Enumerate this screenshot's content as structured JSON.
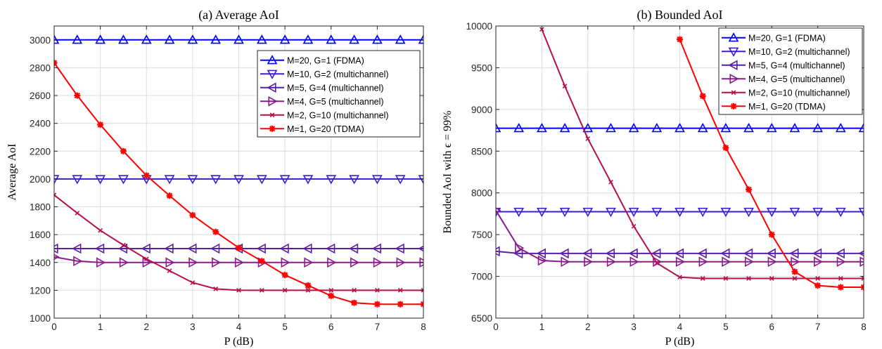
{
  "chart_data": [
    {
      "type": "line",
      "title": "(a) Average AoI",
      "xlabel": "P (dB)",
      "ylabel": "Average AoI",
      "xlim": [
        0,
        8
      ],
      "ylim": [
        1000,
        3100
      ],
      "xticks": [
        0,
        1,
        2,
        3,
        4,
        5,
        6,
        7,
        8
      ],
      "yticks": [
        1000,
        1200,
        1400,
        1600,
        1800,
        2000,
        2200,
        2400,
        2600,
        2800,
        3000
      ],
      "grid": true,
      "legend_position": "top-right",
      "x": [
        0,
        0.5,
        1,
        1.5,
        2,
        2.5,
        3,
        3.5,
        4,
        4.5,
        5,
        5.5,
        6,
        6.5,
        7,
        7.5,
        8
      ],
      "series": [
        {
          "name": "M=20, G=1 (FDMA)",
          "color": "#0000ff",
          "marker": "triangle-up",
          "values": [
            3000,
            3000,
            3000,
            3000,
            3000,
            3000,
            3000,
            3000,
            3000,
            3000,
            3000,
            3000,
            3000,
            3000,
            3000,
            3000,
            3000
          ]
        },
        {
          "name": "M=10, G=2 (multichannel)",
          "color": "#3a1fd0",
          "marker": "triangle-down",
          "values": [
            2000,
            2000,
            2000,
            2000,
            2000,
            2000,
            2000,
            2000,
            2000,
            2000,
            2000,
            2000,
            2000,
            2000,
            2000,
            2000,
            2000
          ]
        },
        {
          "name": "M=5, G=4 (multichannel)",
          "color": "#5a1fa8",
          "marker": "triangle-left",
          "values": [
            1500,
            1500,
            1500,
            1500,
            1500,
            1500,
            1500,
            1500,
            1500,
            1500,
            1500,
            1500,
            1500,
            1500,
            1500,
            1500,
            1500
          ]
        },
        {
          "name": "M=4, G=5 (multichannel)",
          "color": "#8a1c8c",
          "marker": "triangle-right",
          "values": [
            1440,
            1410,
            1400,
            1400,
            1400,
            1400,
            1400,
            1400,
            1400,
            1400,
            1400,
            1400,
            1400,
            1400,
            1400,
            1400,
            1400
          ]
        },
        {
          "name": "M=2, G=10 (multichannel)",
          "color": "#b5104a",
          "marker": "x",
          "values": [
            1885,
            1755,
            1630,
            1525,
            1425,
            1340,
            1255,
            1210,
            1200,
            1200,
            1200,
            1200,
            1200,
            1200,
            1200,
            1200,
            1200
          ]
        },
        {
          "name": "M=1, G=20 (TDMA)",
          "color": "#ff0000",
          "marker": "star",
          "values": [
            2835,
            2600,
            2390,
            2200,
            2025,
            1880,
            1740,
            1620,
            1505,
            1410,
            1310,
            1235,
            1160,
            1110,
            1100,
            1100,
            1100
          ]
        }
      ]
    },
    {
      "type": "line",
      "title": "(b) Bounded AoI",
      "xlabel": "P (dB)",
      "ylabel": "Bounded AoI with ϵ = 99%",
      "xlim": [
        0,
        8
      ],
      "ylim": [
        6500,
        10000
      ],
      "xticks": [
        0,
        1,
        2,
        3,
        4,
        5,
        6,
        7,
        8
      ],
      "yticks": [
        6500,
        7000,
        7500,
        8000,
        8500,
        9000,
        9500,
        10000
      ],
      "grid": true,
      "legend_position": "top-right",
      "x": [
        0,
        0.5,
        1,
        1.5,
        2,
        2.5,
        3,
        3.5,
        4,
        4.5,
        5,
        5.5,
        6,
        6.5,
        7,
        7.5,
        8
      ],
      "series": [
        {
          "name": "M=20, G=1 (FDMA)",
          "color": "#0000ff",
          "marker": "triangle-up",
          "values": [
            8775,
            8775,
            8775,
            8775,
            8775,
            8775,
            8775,
            8775,
            8775,
            8775,
            8775,
            8775,
            8775,
            8775,
            8775,
            8775,
            8775
          ]
        },
        {
          "name": "M=10, G=2 (multichannel)",
          "color": "#3a1fd0",
          "marker": "triangle-down",
          "values": [
            7775,
            7775,
            7775,
            7775,
            7775,
            7775,
            7775,
            7775,
            7775,
            7775,
            7775,
            7775,
            7775,
            7775,
            7775,
            7775,
            7775
          ]
        },
        {
          "name": "M=5, G=4 (multichannel)",
          "color": "#5a1fa8",
          "marker": "triangle-left",
          "values": [
            7300,
            7275,
            7275,
            7275,
            7275,
            7275,
            7275,
            7275,
            7275,
            7275,
            7275,
            7275,
            7275,
            7275,
            7275,
            7275,
            7275
          ]
        },
        {
          "name": "M=4, G=5 (multichannel)",
          "color": "#8a1c8c",
          "marker": "triangle-right",
          "values": [
            7790,
            7340,
            7190,
            7175,
            7175,
            7175,
            7175,
            7175,
            7175,
            7175,
            7175,
            7175,
            7175,
            7175,
            7175,
            7175,
            7175
          ]
        },
        {
          "name": "M=2, G=10 (multichannel)",
          "color": "#b5104a",
          "marker": "x",
          "x": [
            1,
            1.5,
            2,
            2.5,
            3,
            3.5,
            4,
            4.5,
            5,
            5.5,
            6,
            6.5,
            7,
            7.5,
            8
          ],
          "values": [
            9960,
            9280,
            8650,
            8130,
            7600,
            7160,
            6990,
            6975,
            6975,
            6975,
            6975,
            6975,
            6975,
            6975,
            6975
          ]
        },
        {
          "name": "M=1, G=20 (TDMA)",
          "color": "#ff0000",
          "marker": "star",
          "x": [
            4,
            4.5,
            5,
            5.5,
            6,
            6.5,
            7,
            7.5,
            8
          ],
          "values": [
            9840,
            9160,
            8540,
            8040,
            7500,
            7055,
            6890,
            6870,
            6870
          ]
        }
      ]
    }
  ]
}
